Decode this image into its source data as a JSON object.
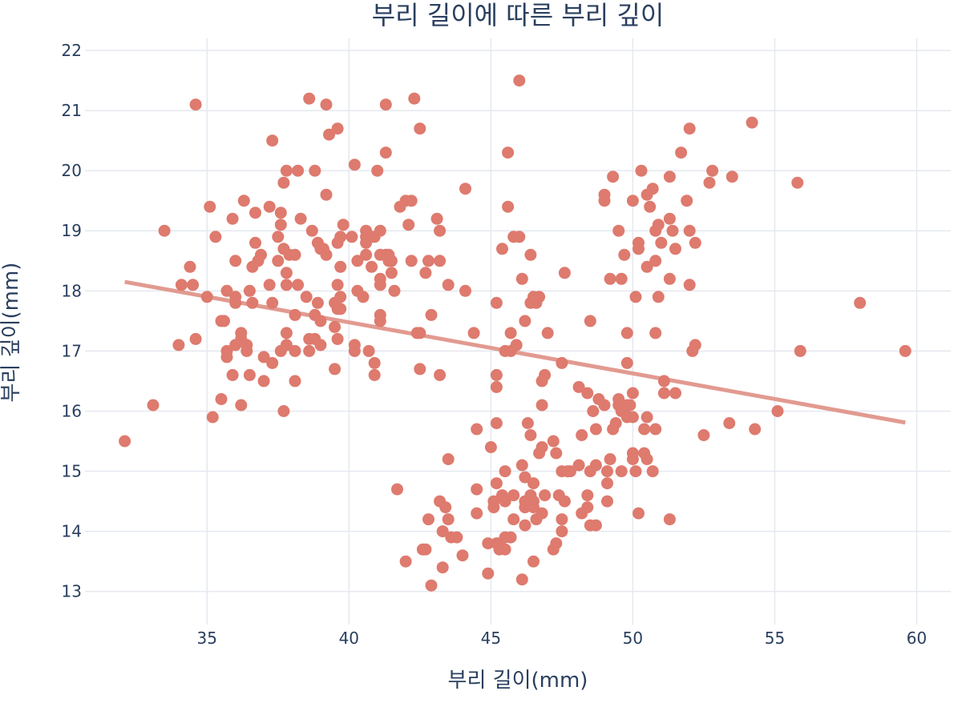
{
  "chart_data": {
    "type": "scatter",
    "title": "부리 길이에 따른 부리 깊이",
    "xlabel": "부리 길이(mm)",
    "ylabel": "부리 깊이(mm)",
    "xlim": [
      30.7,
      61.2
    ],
    "ylim": [
      12.45,
      22.2
    ],
    "x_ticks": [
      35,
      40,
      45,
      50,
      55,
      60
    ],
    "y_ticks": [
      13,
      14,
      15,
      16,
      17,
      18,
      19,
      20,
      21,
      22
    ],
    "grid": true,
    "marker_color": "#de7a6e",
    "trendline_color": "#e29a90",
    "trendline": {
      "x": [
        32.1,
        59.6
      ],
      "y": [
        18.15,
        15.81
      ]
    },
    "points": [
      [
        32.1,
        15.5
      ],
      [
        33.1,
        16.1
      ],
      [
        33.5,
        19.0
      ],
      [
        34.0,
        17.1
      ],
      [
        34.1,
        18.1
      ],
      [
        34.4,
        18.4
      ],
      [
        34.5,
        18.1
      ],
      [
        34.6,
        17.2
      ],
      [
        34.6,
        21.1
      ],
      [
        35.0,
        17.9
      ],
      [
        35.1,
        19.4
      ],
      [
        35.2,
        15.9
      ],
      [
        35.3,
        18.9
      ],
      [
        35.5,
        16.2
      ],
      [
        35.5,
        17.5
      ],
      [
        35.6,
        17.5
      ],
      [
        35.7,
        16.9
      ],
      [
        35.7,
        17.0
      ],
      [
        35.7,
        18.0
      ],
      [
        35.9,
        16.6
      ],
      [
        35.9,
        19.2
      ],
      [
        36.0,
        17.1
      ],
      [
        36.0,
        17.8
      ],
      [
        36.0,
        18.5
      ],
      [
        36.0,
        17.9
      ],
      [
        36.2,
        16.1
      ],
      [
        36.2,
        17.2
      ],
      [
        36.2,
        17.3
      ],
      [
        36.3,
        19.5
      ],
      [
        36.4,
        17.0
      ],
      [
        36.4,
        17.1
      ],
      [
        36.5,
        16.6
      ],
      [
        36.5,
        18.0
      ],
      [
        36.6,
        17.8
      ],
      [
        36.6,
        18.4
      ],
      [
        36.7,
        18.8
      ],
      [
        36.7,
        19.3
      ],
      [
        36.8,
        18.5
      ],
      [
        36.9,
        18.6
      ],
      [
        37.0,
        16.9
      ],
      [
        37.0,
        16.5
      ],
      [
        37.2,
        18.1
      ],
      [
        37.2,
        19.4
      ],
      [
        37.3,
        16.8
      ],
      [
        37.3,
        17.8
      ],
      [
        37.3,
        20.5
      ],
      [
        37.5,
        18.9
      ],
      [
        37.5,
        18.5
      ],
      [
        37.6,
        19.1
      ],
      [
        37.6,
        17.0
      ],
      [
        37.6,
        19.3
      ],
      [
        37.7,
        18.7
      ],
      [
        37.7,
        16.0
      ],
      [
        37.7,
        19.8
      ],
      [
        37.8,
        17.1
      ],
      [
        37.8,
        18.3
      ],
      [
        37.8,
        20.0
      ],
      [
        37.8,
        17.3
      ],
      [
        37.8,
        18.1
      ],
      [
        37.9,
        18.6
      ],
      [
        38.1,
        18.6
      ],
      [
        38.1,
        17.6
      ],
      [
        38.1,
        17.0
      ],
      [
        38.1,
        16.5
      ],
      [
        38.2,
        18.1
      ],
      [
        38.2,
        20.0
      ],
      [
        38.3,
        19.2
      ],
      [
        38.5,
        17.9
      ],
      [
        38.6,
        21.2
      ],
      [
        38.6,
        17.2
      ],
      [
        38.6,
        17.0
      ],
      [
        38.7,
        19.0
      ],
      [
        38.8,
        17.2
      ],
      [
        38.8,
        17.6
      ],
      [
        38.8,
        20.0
      ],
      [
        38.9,
        17.8
      ],
      [
        38.9,
        18.8
      ],
      [
        39.0,
        17.1
      ],
      [
        39.0,
        18.7
      ],
      [
        39.0,
        17.5
      ],
      [
        39.1,
        18.7
      ],
      [
        39.2,
        19.6
      ],
      [
        39.2,
        18.6
      ],
      [
        39.2,
        21.1
      ],
      [
        39.3,
        20.6
      ],
      [
        39.5,
        17.4
      ],
      [
        39.5,
        16.7
      ],
      [
        39.5,
        17.8
      ],
      [
        39.6,
        17.7
      ],
      [
        39.6,
        18.8
      ],
      [
        39.6,
        17.2
      ],
      [
        39.6,
        20.7
      ],
      [
        39.6,
        18.1
      ],
      [
        39.7,
        18.4
      ],
      [
        39.7,
        17.7
      ],
      [
        39.7,
        18.9
      ],
      [
        39.7,
        17.9
      ],
      [
        39.8,
        19.1
      ],
      [
        40.1,
        18.9
      ],
      [
        40.2,
        17.0
      ],
      [
        40.2,
        20.1
      ],
      [
        40.2,
        17.1
      ],
      [
        40.3,
        18.0
      ],
      [
        40.3,
        18.5
      ],
      [
        40.5,
        17.9
      ],
      [
        40.6,
        18.6
      ],
      [
        40.6,
        19.0
      ],
      [
        40.6,
        18.8
      ],
      [
        40.6,
        18.9
      ],
      [
        40.7,
        17.0
      ],
      [
        40.8,
        18.4
      ],
      [
        40.8,
        18.9
      ],
      [
        40.9,
        16.6
      ],
      [
        40.9,
        16.8
      ],
      [
        40.9,
        18.9
      ],
      [
        41.0,
        20.0
      ],
      [
        41.1,
        17.6
      ],
      [
        41.1,
        18.1
      ],
      [
        41.1,
        18.2
      ],
      [
        41.1,
        18.6
      ],
      [
        41.1,
        19.0
      ],
      [
        41.1,
        17.5
      ],
      [
        41.3,
        18.6
      ],
      [
        41.3,
        21.1
      ],
      [
        41.3,
        20.3
      ],
      [
        41.4,
        18.6
      ],
      [
        41.4,
        18.5
      ],
      [
        41.5,
        18.3
      ],
      [
        41.5,
        18.5
      ],
      [
        41.6,
        18.0
      ],
      [
        41.7,
        14.7
      ],
      [
        41.8,
        19.4
      ],
      [
        42.0,
        19.5
      ],
      [
        42.0,
        13.5
      ],
      [
        42.1,
        19.1
      ],
      [
        42.2,
        18.5
      ],
      [
        42.2,
        19.5
      ],
      [
        42.3,
        21.2
      ],
      [
        42.4,
        17.3
      ],
      [
        42.5,
        20.7
      ],
      [
        42.5,
        17.3
      ],
      [
        42.5,
        16.7
      ],
      [
        42.6,
        13.7
      ],
      [
        42.7,
        18.3
      ],
      [
        42.7,
        13.7
      ],
      [
        42.8,
        18.5
      ],
      [
        42.8,
        14.2
      ],
      [
        42.9,
        13.1
      ],
      [
        42.9,
        17.6
      ],
      [
        43.1,
        19.2
      ],
      [
        43.2,
        16.6
      ],
      [
        43.2,
        18.5
      ],
      [
        43.2,
        19.0
      ],
      [
        43.2,
        14.5
      ],
      [
        43.3,
        13.4
      ],
      [
        43.3,
        14.0
      ],
      [
        43.4,
        14.4
      ],
      [
        43.5,
        18.1
      ],
      [
        43.5,
        15.2
      ],
      [
        43.5,
        14.2
      ],
      [
        43.6,
        13.9
      ],
      [
        43.8,
        13.9
      ],
      [
        44.0,
        13.6
      ],
      [
        44.1,
        19.7
      ],
      [
        44.1,
        18.0
      ],
      [
        44.4,
        17.3
      ],
      [
        44.5,
        15.7
      ],
      [
        44.5,
        14.3
      ],
      [
        44.5,
        14.7
      ],
      [
        44.9,
        13.8
      ],
      [
        44.9,
        13.3
      ],
      [
        45.0,
        15.4
      ],
      [
        45.1,
        14.5
      ],
      [
        45.1,
        14.4
      ],
      [
        45.2,
        13.8
      ],
      [
        45.2,
        14.8
      ],
      [
        45.2,
        16.6
      ],
      [
        45.2,
        16.4
      ],
      [
        45.2,
        15.8
      ],
      [
        45.2,
        17.8
      ],
      [
        45.3,
        13.7
      ],
      [
        45.3,
        13.8
      ],
      [
        45.4,
        18.7
      ],
      [
        45.4,
        14.6
      ],
      [
        45.5,
        17.0
      ],
      [
        45.5,
        13.7
      ],
      [
        45.5,
        14.5
      ],
      [
        45.5,
        15.0
      ],
      [
        45.5,
        13.9
      ],
      [
        45.6,
        19.4
      ],
      [
        45.6,
        20.3
      ],
      [
        45.7,
        13.9
      ],
      [
        45.7,
        17.0
      ],
      [
        45.7,
        17.3
      ],
      [
        45.8,
        14.6
      ],
      [
        45.8,
        18.9
      ],
      [
        45.8,
        14.2
      ],
      [
        45.9,
        17.1
      ],
      [
        46.0,
        21.5
      ],
      [
        46.0,
        18.9
      ],
      [
        46.1,
        18.2
      ],
      [
        46.1,
        15.1
      ],
      [
        46.1,
        13.2
      ],
      [
        46.2,
        14.5
      ],
      [
        46.2,
        14.4
      ],
      [
        46.2,
        17.5
      ],
      [
        46.2,
        14.1
      ],
      [
        46.2,
        14.9
      ],
      [
        46.3,
        15.8
      ],
      [
        46.4,
        15.6
      ],
      [
        46.4,
        18.6
      ],
      [
        46.4,
        14.6
      ],
      [
        46.4,
        17.8
      ],
      [
        46.5,
        17.9
      ],
      [
        46.5,
        14.5
      ],
      [
        46.5,
        14.4
      ],
      [
        46.5,
        13.5
      ],
      [
        46.5,
        14.8
      ],
      [
        46.6,
        17.8
      ],
      [
        46.6,
        14.2
      ],
      [
        46.7,
        15.3
      ],
      [
        46.7,
        17.9
      ],
      [
        46.8,
        15.4
      ],
      [
        46.8,
        14.3
      ],
      [
        46.8,
        16.5
      ],
      [
        46.8,
        16.1
      ],
      [
        46.9,
        16.6
      ],
      [
        46.9,
        14.6
      ],
      [
        47.0,
        17.3
      ],
      [
        47.2,
        15.5
      ],
      [
        47.2,
        13.7
      ],
      [
        47.3,
        15.3
      ],
      [
        47.3,
        13.8
      ],
      [
        47.4,
        14.6
      ],
      [
        47.5,
        16.8
      ],
      [
        47.5,
        15.0
      ],
      [
        47.5,
        14.2
      ],
      [
        47.5,
        14.0
      ],
      [
        47.6,
        18.3
      ],
      [
        47.6,
        14.5
      ],
      [
        47.7,
        15.0
      ],
      [
        47.8,
        15.0
      ],
      [
        48.1,
        16.4
      ],
      [
        48.1,
        15.1
      ],
      [
        48.2,
        14.3
      ],
      [
        48.2,
        15.6
      ],
      [
        48.4,
        16.3
      ],
      [
        48.4,
        14.6
      ],
      [
        48.4,
        14.4
      ],
      [
        48.5,
        17.5
      ],
      [
        48.5,
        15.0
      ],
      [
        48.5,
        14.1
      ],
      [
        48.6,
        16.0
      ],
      [
        48.7,
        15.7
      ],
      [
        48.7,
        15.1
      ],
      [
        48.7,
        14.1
      ],
      [
        48.8,
        16.2
      ],
      [
        49.0,
        19.5
      ],
      [
        49.0,
        19.6
      ],
      [
        49.0,
        16.1
      ],
      [
        49.1,
        14.8
      ],
      [
        49.1,
        15.0
      ],
      [
        49.1,
        14.5
      ],
      [
        49.2,
        18.2
      ],
      [
        49.2,
        15.2
      ],
      [
        49.3,
        15.7
      ],
      [
        49.3,
        19.9
      ],
      [
        49.4,
        15.8
      ],
      [
        49.5,
        19.0
      ],
      [
        49.5,
        16.2
      ],
      [
        49.5,
        16.1
      ],
      [
        49.6,
        15.0
      ],
      [
        49.6,
        16.0
      ],
      [
        49.6,
        18.2
      ],
      [
        49.7,
        16.0
      ],
      [
        49.7,
        18.6
      ],
      [
        49.8,
        15.9
      ],
      [
        49.8,
        16.1
      ],
      [
        49.8,
        16.8
      ],
      [
        49.8,
        17.3
      ],
      [
        49.9,
        16.1
      ],
      [
        50.0,
        16.3
      ],
      [
        50.0,
        19.5
      ],
      [
        50.0,
        15.2
      ],
      [
        50.0,
        15.9
      ],
      [
        50.0,
        15.3
      ],
      [
        50.1,
        17.9
      ],
      [
        50.1,
        15.0
      ],
      [
        50.2,
        18.7
      ],
      [
        50.2,
        18.8
      ],
      [
        50.2,
        14.3
      ],
      [
        50.3,
        20.0
      ],
      [
        50.4,
        15.7
      ],
      [
        50.4,
        15.3
      ],
      [
        50.5,
        19.6
      ],
      [
        50.5,
        18.4
      ],
      [
        50.5,
        15.9
      ],
      [
        50.5,
        15.2
      ],
      [
        50.6,
        19.4
      ],
      [
        50.7,
        19.7
      ],
      [
        50.7,
        15.0
      ],
      [
        50.8,
        19.0
      ],
      [
        50.8,
        17.3
      ],
      [
        50.8,
        18.5
      ],
      [
        50.8,
        15.7
      ],
      [
        50.9,
        17.9
      ],
      [
        50.9,
        19.1
      ],
      [
        51.0,
        18.8
      ],
      [
        51.1,
        16.5
      ],
      [
        51.1,
        16.3
      ],
      [
        51.3,
        19.2
      ],
      [
        51.3,
        18.2
      ],
      [
        51.3,
        19.9
      ],
      [
        51.3,
        14.2
      ],
      [
        51.4,
        19.0
      ],
      [
        51.5,
        18.7
      ],
      [
        51.5,
        16.3
      ],
      [
        51.7,
        20.3
      ],
      [
        51.9,
        19.5
      ],
      [
        52.0,
        18.1
      ],
      [
        52.0,
        20.7
      ],
      [
        52.0,
        19.0
      ],
      [
        52.1,
        17.0
      ],
      [
        52.2,
        18.8
      ],
      [
        52.2,
        17.1
      ],
      [
        52.5,
        15.6
      ],
      [
        52.7,
        19.8
      ],
      [
        52.8,
        20.0
      ],
      [
        53.4,
        15.8
      ],
      [
        53.5,
        19.9
      ],
      [
        54.2,
        20.8
      ],
      [
        54.3,
        15.7
      ],
      [
        55.1,
        16.0
      ],
      [
        55.8,
        19.8
      ],
      [
        55.9,
        17.0
      ],
      [
        58.0,
        17.8
      ],
      [
        59.6,
        17.0
      ]
    ]
  }
}
